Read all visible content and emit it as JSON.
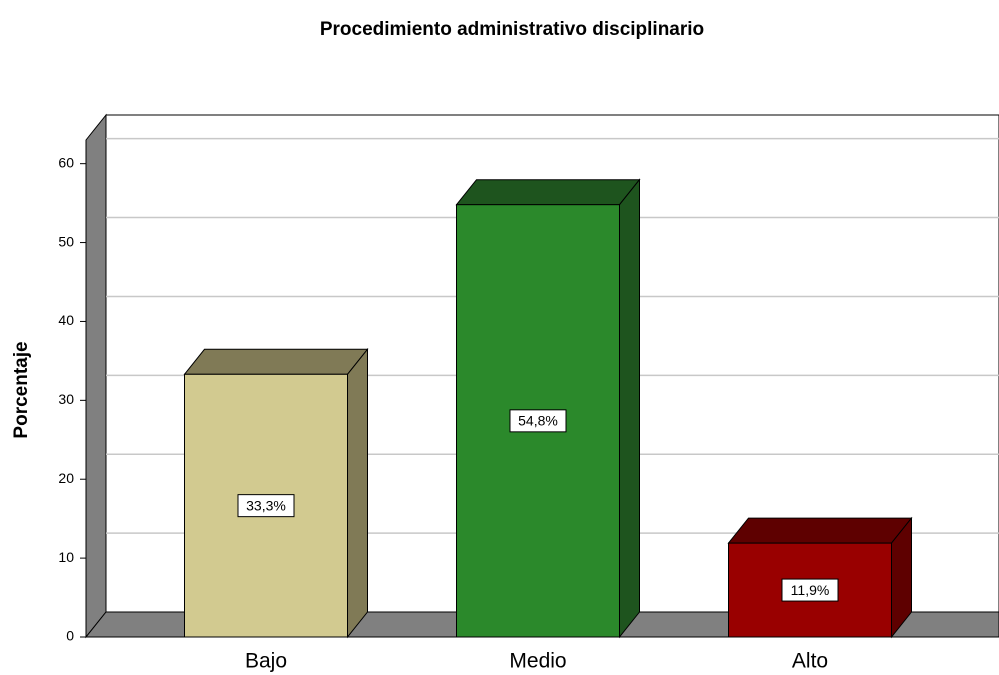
{
  "chart_data": {
    "type": "bar3d",
    "title": "Procedimiento administrativo disciplinario",
    "ylabel": "Porcentaje",
    "categories": [
      "Bajo",
      "Medio",
      "Alto"
    ],
    "values": [
      33.3,
      54.8,
      11.9
    ],
    "value_labels": [
      "33,3%",
      "54,8%",
      "11,9%"
    ],
    "colors": [
      "#d2ca90",
      "#2b892b",
      "#990000"
    ],
    "side_colors": [
      "#807a56",
      "#1e541e",
      "#5e0000"
    ],
    "ylim": [
      0,
      63
    ],
    "yticks": [
      0,
      10,
      20,
      30,
      40,
      50,
      60
    ],
    "grid": true
  }
}
